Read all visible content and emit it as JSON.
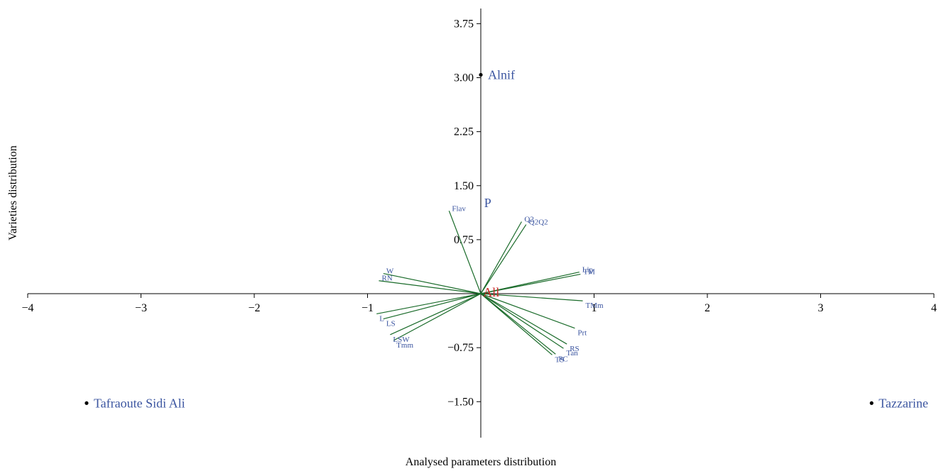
{
  "chart_data": {
    "type": "scatter",
    "title": "",
    "xlabel": "Analysed parameters distribution",
    "ylabel": "Varieties distribution",
    "xlim": [
      -4,
      4
    ],
    "ylim": [
      -2,
      4
    ],
    "x_ticks": [
      {
        "value": -4,
        "label": "−4"
      },
      {
        "value": -3,
        "label": "−3"
      },
      {
        "value": -2,
        "label": "−2"
      },
      {
        "value": -1,
        "label": "−1"
      },
      {
        "value": 1,
        "label": "1"
      },
      {
        "value": 2,
        "label": "2"
      },
      {
        "value": 3,
        "label": "3"
      },
      {
        "value": 4,
        "label": "4"
      }
    ],
    "y_ticks": [
      {
        "value": 3.75,
        "label": "3.75"
      },
      {
        "value": 3.0,
        "label": "3.00"
      },
      {
        "value": 2.25,
        "label": "2.25"
      },
      {
        "value": 1.5,
        "label": "1.50"
      },
      {
        "value": 0.75,
        "label": "0.75"
      },
      {
        "value": -0.75,
        "label": "−0.75"
      },
      {
        "value": -1.5,
        "label": "−1.50"
      }
    ],
    "grid": false,
    "site_points": [
      {
        "name": "Alnif",
        "x": 0.0,
        "y": 3.04
      },
      {
        "name": "Tafraoute Sidi Ali",
        "x": -3.48,
        "y": -1.52
      },
      {
        "name": "Tazzarine",
        "x": 3.45,
        "y": -1.52
      }
    ],
    "group_labels": [
      {
        "text": "P",
        "x": 0.03,
        "y": 1.2,
        "color": "#3b55a0"
      },
      {
        "text": "All",
        "x": 0.02,
        "y": -0.04,
        "color": "#cc2a2a"
      }
    ],
    "vector_color": "#1a6b2a",
    "vectors": [
      {
        "name": "Flav",
        "x": -0.28,
        "y": 1.15
      },
      {
        "name": "Q2",
        "x": 0.36,
        "y": 1.0
      },
      {
        "name": "Q2Q2",
        "x": 0.4,
        "y": 0.96
      },
      {
        "name": "Lip",
        "x": 0.87,
        "y": 0.3
      },
      {
        "name": "TM",
        "x": 0.88,
        "y": 0.27
      },
      {
        "name": "W",
        "x": -0.86,
        "y": 0.28
      },
      {
        "name": "RN",
        "x": -0.9,
        "y": 0.18
      },
      {
        "name": "TMm",
        "x": 0.9,
        "y": -0.1
      },
      {
        "name": "L",
        "x": -0.92,
        "y": -0.28
      },
      {
        "name": "LS",
        "x": -0.86,
        "y": -0.35
      },
      {
        "name": "LSW",
        "x": -0.8,
        "y": -0.57
      },
      {
        "name": "Tmm",
        "x": -0.77,
        "y": -0.65
      },
      {
        "name": "Prt",
        "x": 0.83,
        "y": -0.48
      },
      {
        "name": "RS",
        "x": 0.76,
        "y": -0.7
      },
      {
        "name": "Tan",
        "x": 0.73,
        "y": -0.76
      },
      {
        "name": "PC",
        "x": 0.66,
        "y": -0.84
      },
      {
        "name": "TS",
        "x": 0.63,
        "y": -0.85
      }
    ]
  }
}
